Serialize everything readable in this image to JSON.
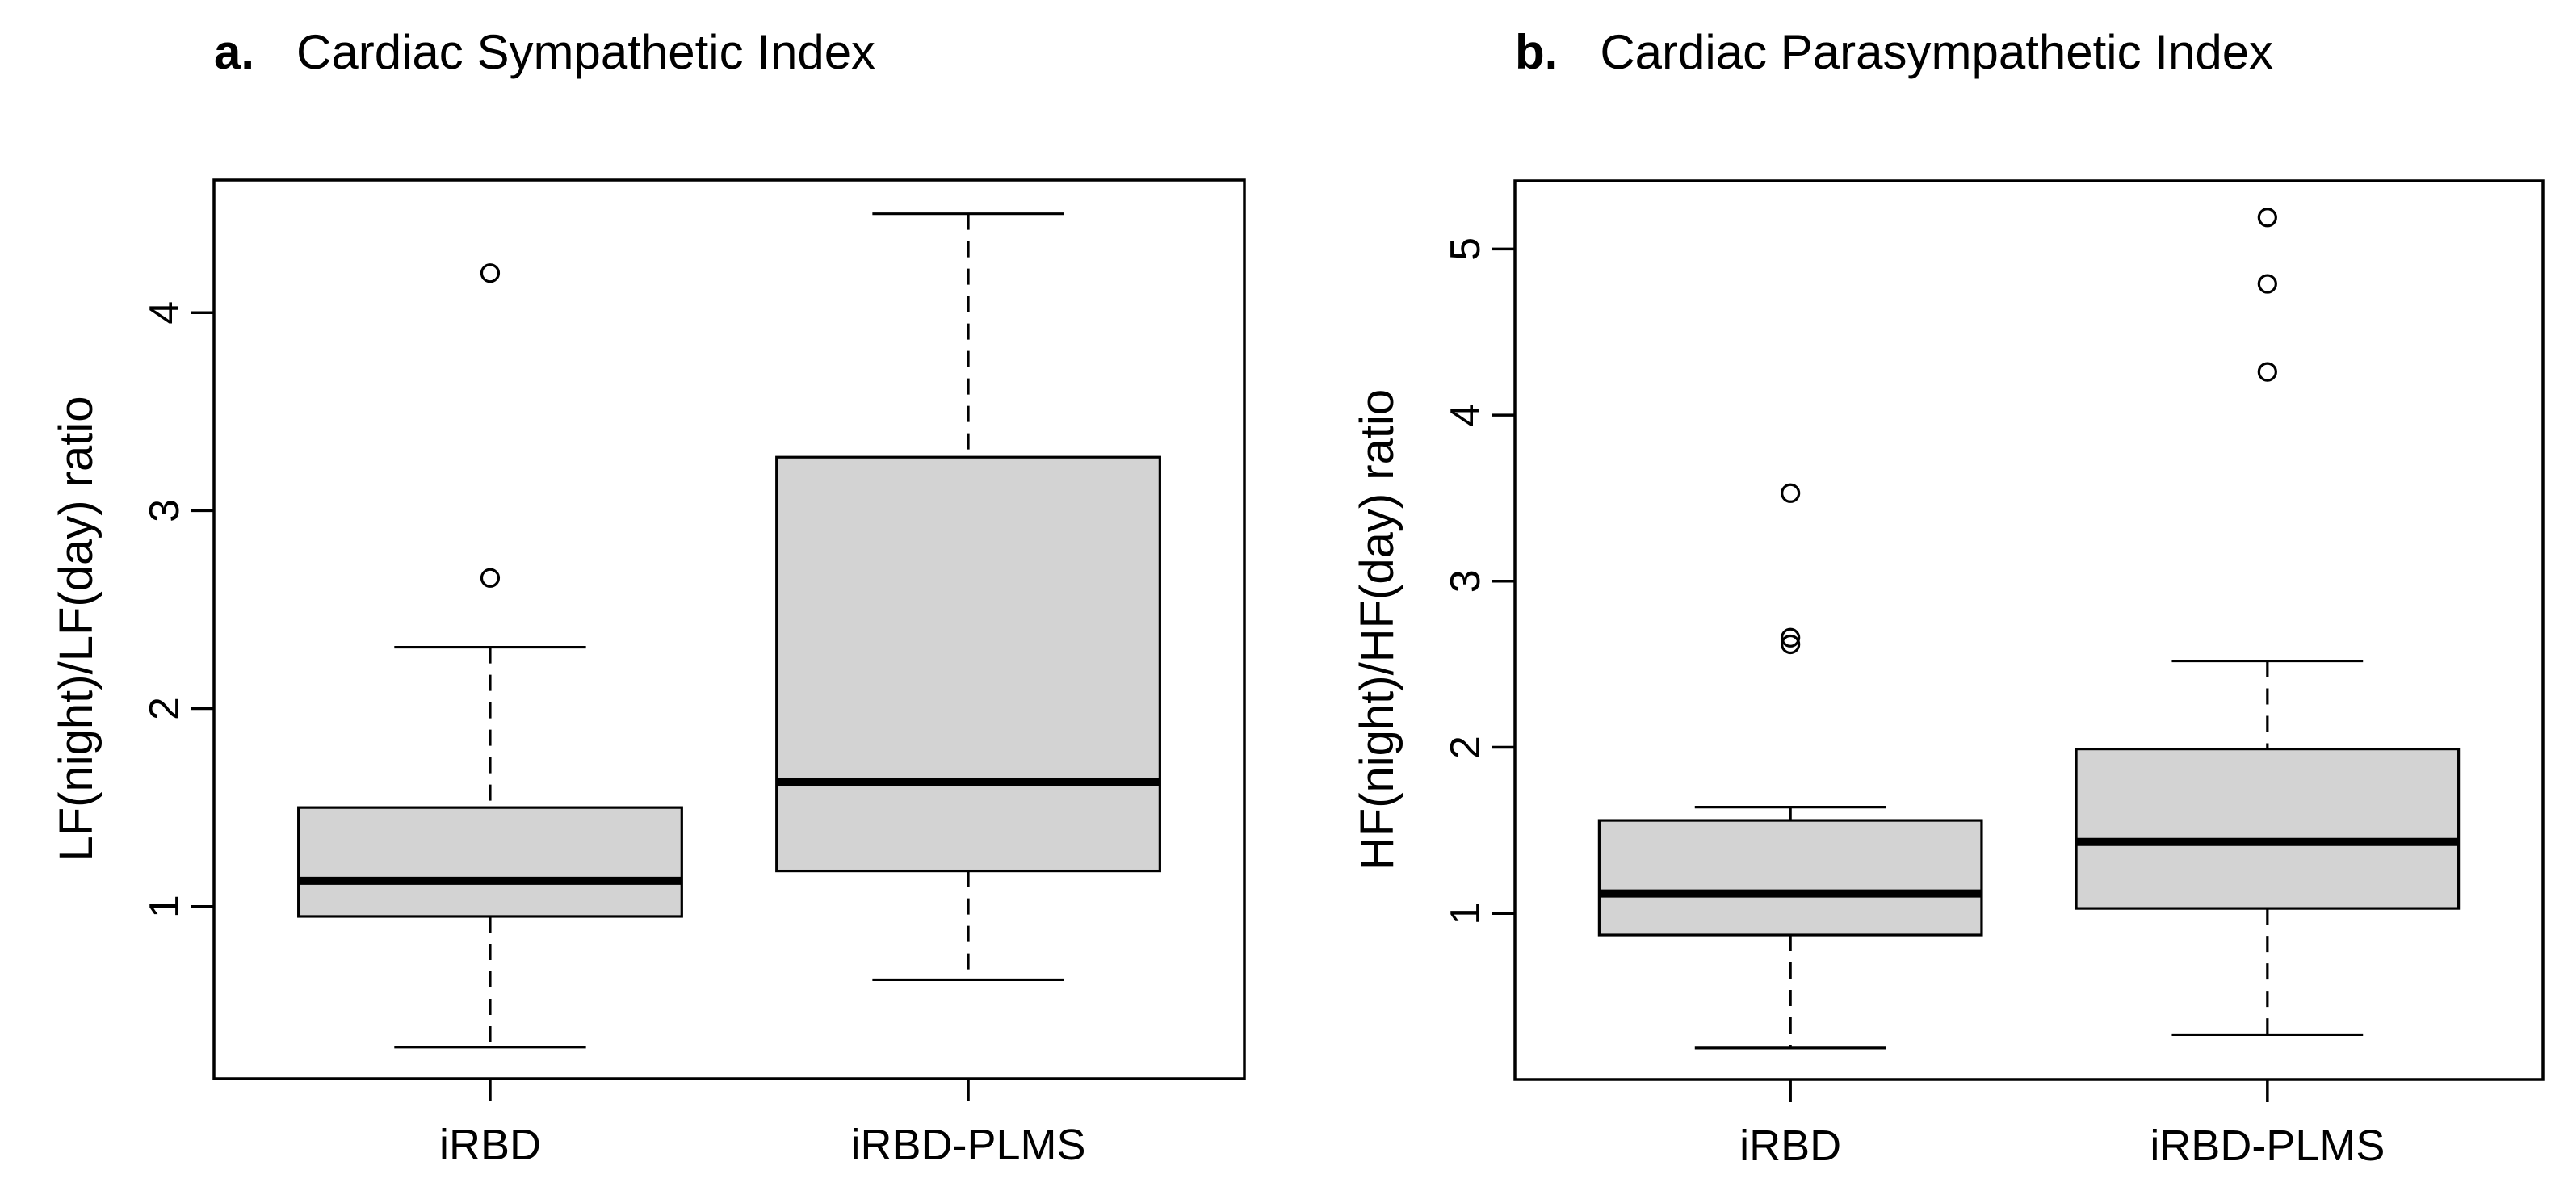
{
  "figure": {
    "kind": "two-panel box-and-whisker figure",
    "background_color": "#ffffff",
    "box_fill_color": "#d3d3d3",
    "line_color": "#000000"
  },
  "chart_data": [
    {
      "type": "boxplot",
      "panel_label": "a.",
      "title": "Cardiac Sympathetic Index",
      "ylabel": "LF(night)/LF(day) ratio",
      "xlabel": "",
      "categories": [
        "iRBD",
        "iRBD-PLMS"
      ],
      "yticks": [
        1,
        2,
        3,
        4
      ],
      "ylim": [
        0.13,
        4.67
      ],
      "grid": false,
      "legend": null,
      "boxes": [
        {
          "category": "iRBD",
          "whisker_low": 0.29,
          "q1": 0.95,
          "median": 1.13,
          "q3": 1.5,
          "whisker_high": 2.31,
          "outliers": [
            2.66,
            4.2
          ]
        },
        {
          "category": "iRBD-PLMS",
          "whisker_low": 0.63,
          "q1": 1.18,
          "median": 1.63,
          "q3": 3.27,
          "whisker_high": 4.5,
          "outliers": []
        }
      ]
    },
    {
      "type": "boxplot",
      "panel_label": "b.",
      "title": "Cardiac Parasympathetic Index",
      "ylabel": "HF(night)/HF(day) ratio",
      "xlabel": "",
      "categories": [
        "iRBD",
        "iRBD-PLMS"
      ],
      "yticks": [
        1,
        2,
        3,
        4,
        5
      ],
      "ylim": [
        0.0,
        5.41
      ],
      "grid": false,
      "legend": null,
      "boxes": [
        {
          "category": "iRBD",
          "whisker_low": 0.19,
          "q1": 0.87,
          "median": 1.12,
          "q3": 1.56,
          "whisker_high": 1.64,
          "outliers": [
            2.62,
            2.66,
            3.53
          ]
        },
        {
          "category": "iRBD-PLMS",
          "whisker_low": 0.27,
          "q1": 1.03,
          "median": 1.43,
          "q3": 1.99,
          "whisker_high": 2.52,
          "outliers": [
            4.26,
            4.79,
            5.19
          ]
        }
      ]
    }
  ]
}
